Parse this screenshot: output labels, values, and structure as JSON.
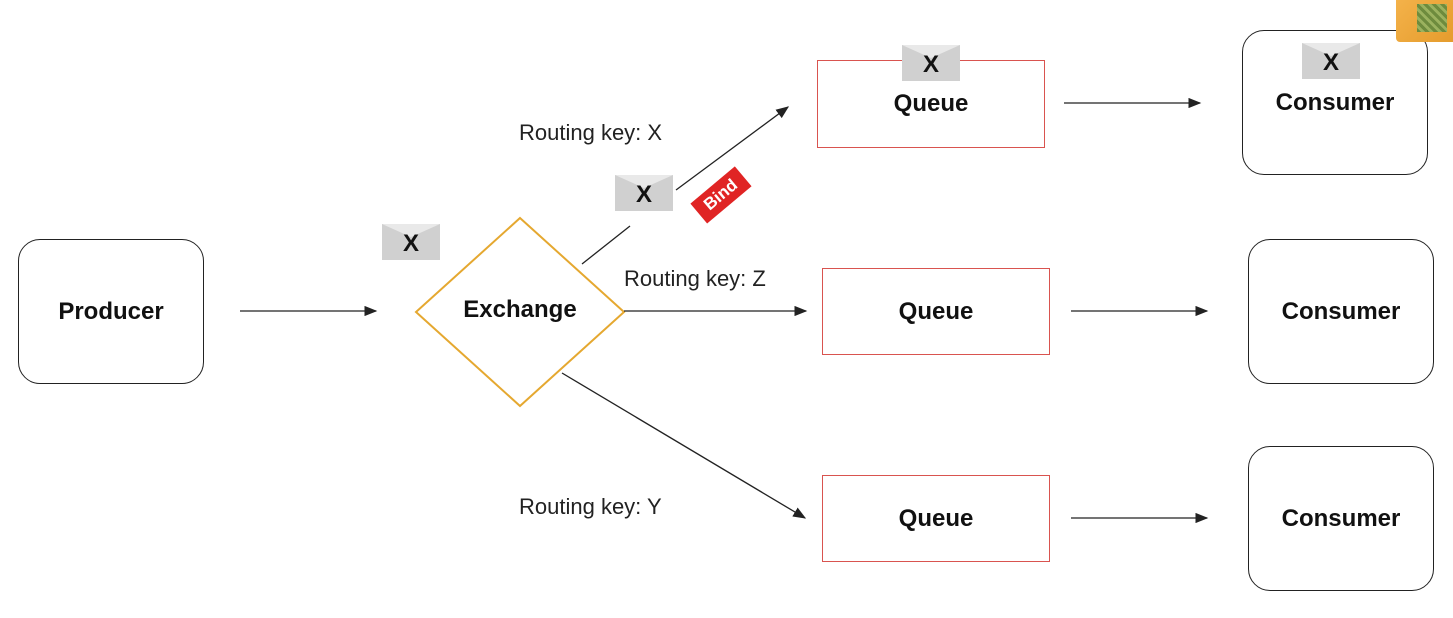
{
  "producer": {
    "label": "Producer"
  },
  "exchange": {
    "label": "Exchange"
  },
  "queues": [
    {
      "label": "Queue"
    },
    {
      "label": "Queue"
    },
    {
      "label": "Queue"
    }
  ],
  "consumers": [
    {
      "label": "Consumer"
    },
    {
      "label": "Consumer"
    },
    {
      "label": "Consumer"
    }
  ],
  "routing_keys": {
    "top": "Routing key: X",
    "middle": "Routing key: Z",
    "bottom": "Routing key: Y"
  },
  "messages": {
    "incoming": "X",
    "on_route": "X",
    "in_queue": "X",
    "at_consumer": "X"
  },
  "bind_label": "Bind",
  "colors": {
    "exchange_border": "#e5a830",
    "queue_border": "#d9534f",
    "bind_badge": "#e02424"
  }
}
